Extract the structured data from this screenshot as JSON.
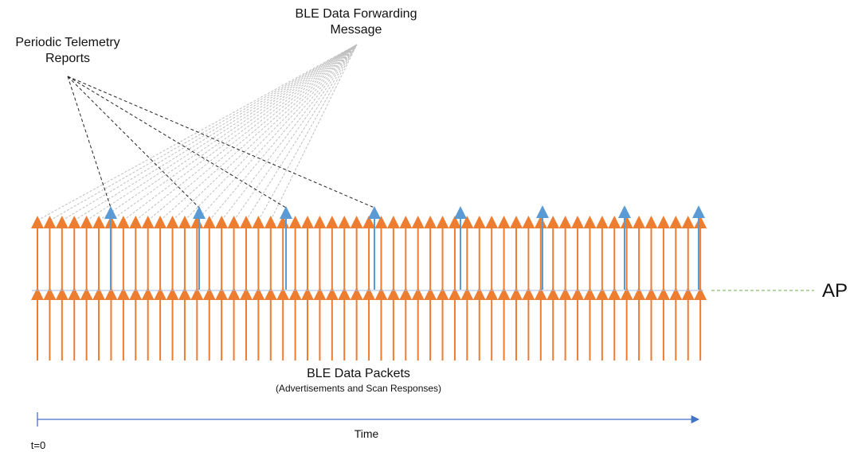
{
  "labels": {
    "telemetry_line1": "Periodic Telemetry",
    "telemetry_line2": "Reports",
    "forwarding_line1": "BLE Data Forwarding",
    "forwarding_line2": "Message",
    "packets_title": "BLE Data Packets",
    "packets_subtitle": "(Advertisements and Scan Responses)",
    "time": "Time",
    "t0": "t=0",
    "ap": "AP"
  },
  "colors": {
    "packet_arrow": "#ed7d31",
    "telemetry_arrow": "#5b9bd5",
    "axis": "#4472c4",
    "ap_line": "#70ad47",
    "forwarding_lines": "#bfbfbf",
    "telemetry_lines": "#222222"
  },
  "packets": {
    "count": 55,
    "per_row": "Advertisements and Scan Responses"
  },
  "telemetry_reports": {
    "count": 8,
    "linked_to_label_count": 4
  }
}
